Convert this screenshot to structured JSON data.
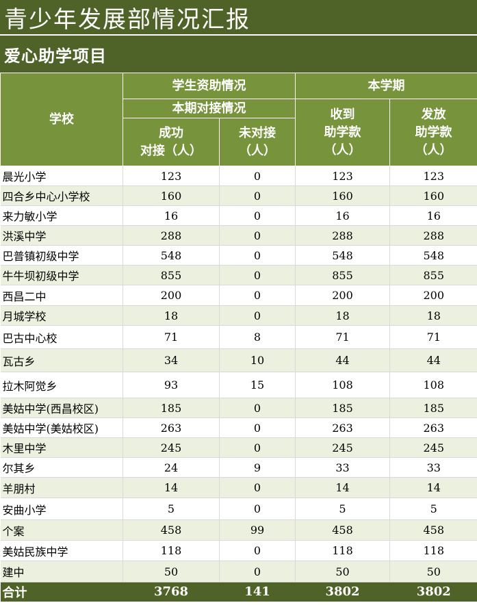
{
  "title": "青少年发展部情况汇报",
  "subtitle": "爱心助学项目",
  "header": {
    "school": "学校",
    "group_left": "学生资助情况",
    "group_right": "本学期",
    "sub_left": "本期对接情况",
    "col_success": "成功\n对接（人）",
    "col_unmatched": "未对接\n（人）",
    "col_received": "收到\n助学款\n（人）",
    "col_distributed": "发放\n助学款\n（人）"
  },
  "rows": [
    {
      "name": "晨光小学",
      "success": "123",
      "unmatched": "0",
      "received": "123",
      "distributed": "123"
    },
    {
      "name": "四合乡中心小学校",
      "success": "160",
      "unmatched": "0",
      "received": "160",
      "distributed": "160"
    },
    {
      "name": "来力敏小学",
      "success": "16",
      "unmatched": "0",
      "received": "16",
      "distributed": "16"
    },
    {
      "name": "洪溪中学",
      "success": "288",
      "unmatched": "0",
      "received": "288",
      "distributed": "288"
    },
    {
      "name": "巴普镇初级中学",
      "success": "548",
      "unmatched": "0",
      "received": "548",
      "distributed": "548"
    },
    {
      "name": "牛牛坝初级中学",
      "success": "855",
      "unmatched": "0",
      "received": "855",
      "distributed": "855"
    },
    {
      "name": "西昌二中",
      "success": "200",
      "unmatched": "0",
      "received": "200",
      "distributed": "200"
    },
    {
      "name": "月城学校",
      "success": "18",
      "unmatched": "0",
      "received": "18",
      "distributed": "18"
    },
    {
      "name": "巴古中心校",
      "success": "71",
      "unmatched": "8",
      "received": "71",
      "distributed": "71"
    },
    {
      "name": "瓦古乡",
      "success": "34",
      "unmatched": "10",
      "received": "44",
      "distributed": "44"
    },
    {
      "name": "拉木阿觉乡",
      "success": "93",
      "unmatched": "15",
      "received": "108",
      "distributed": "108"
    },
    {
      "name": "美姑中学(西昌校区)",
      "success": "185",
      "unmatched": "0",
      "received": "185",
      "distributed": "185"
    },
    {
      "name": "美姑中学(美姑校区)",
      "success": "263",
      "unmatched": "0",
      "received": "263",
      "distributed": "263"
    },
    {
      "name": "木里中学",
      "success": "245",
      "unmatched": "0",
      "received": "245",
      "distributed": "245"
    },
    {
      "name": "尔其乡",
      "success": "24",
      "unmatched": "9",
      "received": "33",
      "distributed": "33"
    },
    {
      "name": "羊朋村",
      "success": "14",
      "unmatched": "0",
      "received": "14",
      "distributed": "14"
    },
    {
      "name": "安曲小学",
      "success": "5",
      "unmatched": "0",
      "received": "5",
      "distributed": "5"
    },
    {
      "name": "个案",
      "success": "458",
      "unmatched": "99",
      "received": "458",
      "distributed": "458"
    },
    {
      "name": "美姑民族中学",
      "success": "118",
      "unmatched": "0",
      "received": "118",
      "distributed": "118"
    },
    {
      "name": "建中",
      "success": "50",
      "unmatched": "0",
      "received": "50",
      "distributed": "50"
    }
  ],
  "total": {
    "name": "合计",
    "success": "3768",
    "unmatched": "141",
    "received": "3802",
    "distributed": "3802"
  },
  "colors": {
    "dark_green": "#4f6228",
    "mid_green": "#77933c",
    "stripe": "#ebf1de"
  }
}
